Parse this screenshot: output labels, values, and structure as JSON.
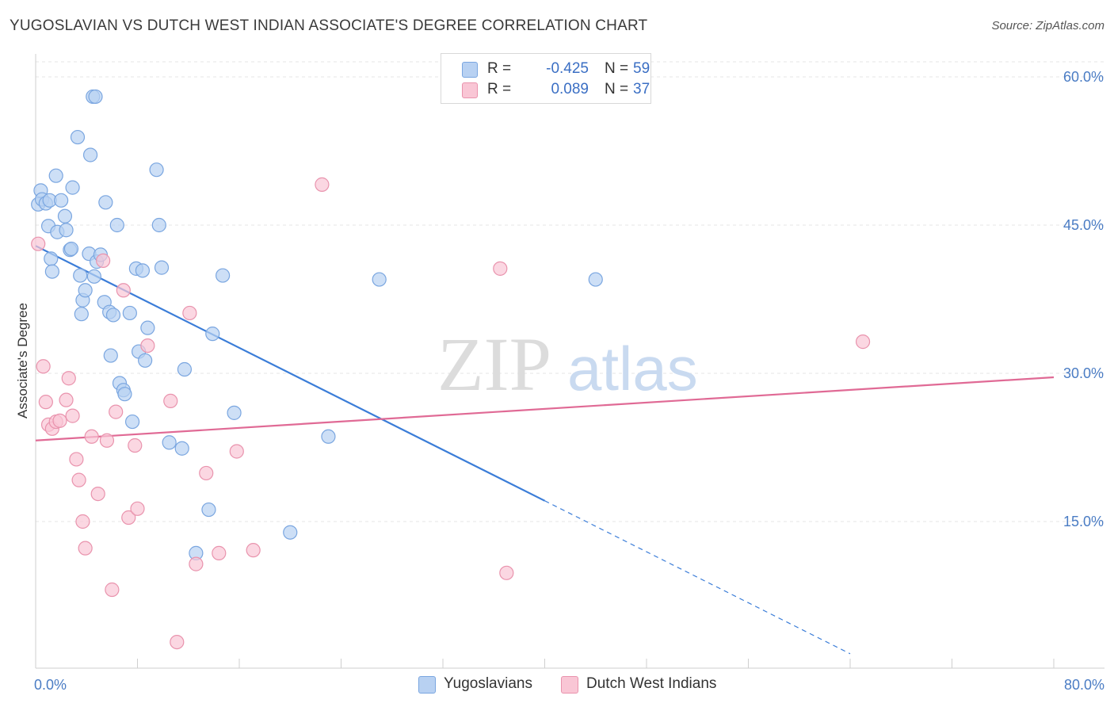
{
  "title": "YUGOSLAVIAN VS DUTCH WEST INDIAN ASSOCIATE'S DEGREE CORRELATION CHART",
  "source": "Source: ZipAtlas.com",
  "watermark": {
    "zip": "ZIP",
    "atlas": "atlas"
  },
  "legend": {
    "r_label": "R =",
    "n_label": "N =",
    "rows": [
      {
        "r": "-0.425",
        "n": "59",
        "fill": "#b8d1f2",
        "stroke": "#7aa6e0"
      },
      {
        "r": "0.089",
        "n": "37",
        "fill": "#f9c6d5",
        "stroke": "#e993ad"
      }
    ]
  },
  "chart_data": {
    "type": "scatter",
    "ylabel": "Associate's Degree",
    "xlim": [
      0,
      80
    ],
    "ylim": [
      0,
      60
    ],
    "x_tick_labels": [
      "0.0%",
      "80.0%"
    ],
    "y_ticks": [
      {
        "value": 15,
        "label": "15.0%"
      },
      {
        "value": 30,
        "label": "30.0%"
      },
      {
        "value": 45,
        "label": "45.0%"
      },
      {
        "value": 60,
        "label": "60.0%"
      }
    ],
    "series": [
      {
        "name": "Yugoslavians",
        "color": "#3b7dd8",
        "fill": "#b8d1f2",
        "stroke": "#7aa6e0",
        "trend": {
          "x0": 0,
          "y0": 42.9,
          "x1": 40,
          "y1": 17.1,
          "dashed_to_x": 64
        },
        "points": [
          [
            0.2,
            47.1
          ],
          [
            0.4,
            48.5
          ],
          [
            0.5,
            47.6
          ],
          [
            0.8,
            47.2
          ],
          [
            1.0,
            44.9
          ],
          [
            1.1,
            47.5
          ],
          [
            1.2,
            41.6
          ],
          [
            1.3,
            40.3
          ],
          [
            1.6,
            50.0
          ],
          [
            1.7,
            44.3
          ],
          [
            2.0,
            47.5
          ],
          [
            2.3,
            45.9
          ],
          [
            2.4,
            44.5
          ],
          [
            2.7,
            42.5
          ],
          [
            2.8,
            42.6
          ],
          [
            2.9,
            48.8
          ],
          [
            3.3,
            53.9
          ],
          [
            3.5,
            39.9
          ],
          [
            3.6,
            36.0
          ],
          [
            3.7,
            37.4
          ],
          [
            3.9,
            38.4
          ],
          [
            4.2,
            42.1
          ],
          [
            4.3,
            52.1
          ],
          [
            4.5,
            58.0
          ],
          [
            4.6,
            39.8
          ],
          [
            4.7,
            58.0
          ],
          [
            4.8,
            41.3
          ],
          [
            5.1,
            42.0
          ],
          [
            5.4,
            37.2
          ],
          [
            5.5,
            47.3
          ],
          [
            5.8,
            36.2
          ],
          [
            5.9,
            31.8
          ],
          [
            6.1,
            35.9
          ],
          [
            6.4,
            45.0
          ],
          [
            6.6,
            29.0
          ],
          [
            6.9,
            28.3
          ],
          [
            7.0,
            27.9
          ],
          [
            7.4,
            36.1
          ],
          [
            7.6,
            25.1
          ],
          [
            7.9,
            40.6
          ],
          [
            8.1,
            32.2
          ],
          [
            8.4,
            40.4
          ],
          [
            8.6,
            31.3
          ],
          [
            8.8,
            34.6
          ],
          [
            9.5,
            50.6
          ],
          [
            9.7,
            45.0
          ],
          [
            9.9,
            40.7
          ],
          [
            10.5,
            23.0
          ],
          [
            11.5,
            22.4
          ],
          [
            11.7,
            30.4
          ],
          [
            12.6,
            11.8
          ],
          [
            13.6,
            16.2
          ],
          [
            13.9,
            34.0
          ],
          [
            14.7,
            39.9
          ],
          [
            15.6,
            26.0
          ],
          [
            20.0,
            13.9
          ],
          [
            23.0,
            23.6
          ],
          [
            27.0,
            39.5
          ],
          [
            44.0,
            39.5
          ]
        ]
      },
      {
        "name": "Dutch West Indians",
        "color": "#e06a95",
        "fill": "#f9c6d5",
        "stroke": "#e993ad",
        "trend": {
          "x0": 0,
          "y0": 23.2,
          "x1": 80,
          "y1": 29.6
        },
        "points": [
          [
            0.2,
            43.1
          ],
          [
            0.6,
            30.7
          ],
          [
            0.8,
            27.1
          ],
          [
            1.0,
            24.8
          ],
          [
            1.3,
            24.4
          ],
          [
            1.6,
            25.1
          ],
          [
            1.9,
            25.2
          ],
          [
            2.4,
            27.3
          ],
          [
            2.6,
            29.5
          ],
          [
            2.9,
            25.7
          ],
          [
            3.2,
            21.3
          ],
          [
            3.4,
            19.2
          ],
          [
            3.7,
            15.0
          ],
          [
            3.9,
            12.3
          ],
          [
            4.4,
            23.6
          ],
          [
            4.9,
            17.8
          ],
          [
            5.3,
            41.4
          ],
          [
            5.6,
            23.2
          ],
          [
            6.0,
            8.1
          ],
          [
            6.3,
            26.1
          ],
          [
            6.9,
            38.4
          ],
          [
            7.3,
            15.4
          ],
          [
            7.8,
            22.7
          ],
          [
            8.0,
            16.3
          ],
          [
            8.8,
            32.8
          ],
          [
            10.6,
            27.2
          ],
          [
            11.1,
            2.8
          ],
          [
            12.1,
            36.1
          ],
          [
            12.6,
            10.7
          ],
          [
            13.4,
            19.9
          ],
          [
            14.4,
            11.8
          ],
          [
            15.8,
            22.1
          ],
          [
            17.1,
            12.1
          ],
          [
            22.5,
            49.1
          ],
          [
            36.5,
            40.6
          ],
          [
            37.0,
            9.8
          ],
          [
            65.0,
            33.2
          ]
        ]
      }
    ]
  }
}
